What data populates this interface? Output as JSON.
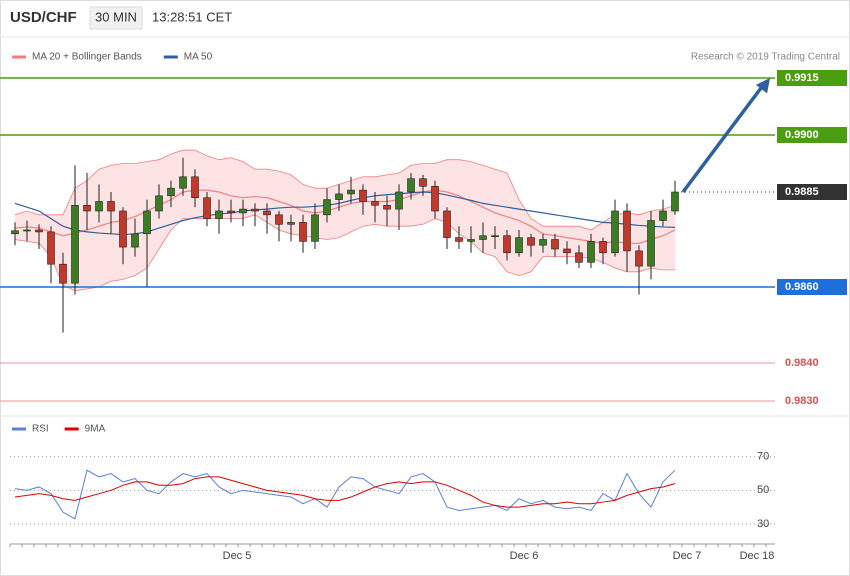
{
  "header": {
    "symbol": "USD/CHF",
    "interval": "30 MIN",
    "time": "13:28:51 CET"
  },
  "chart_data": [
    {
      "type": "candlestick",
      "copyright": "Research © 2019 Trading Central",
      "up_color": "#3a7d22",
      "down_color": "#c0392b",
      "ylim": [
        0.9825,
        0.9925
      ],
      "ohlc": [
        [
          0.9874,
          0.9877,
          0.9871,
          0.98748
        ],
        [
          0.98748,
          0.98775,
          0.9872,
          0.9875
        ],
        [
          0.9875,
          0.98765,
          0.987,
          0.98745
        ],
        [
          0.98745,
          0.9876,
          0.9861,
          0.9866
        ],
        [
          0.9866,
          0.9869,
          0.9848,
          0.9861
        ],
        [
          0.9861,
          0.9892,
          0.9858,
          0.98815
        ],
        [
          0.98815,
          0.989,
          0.9875,
          0.988
        ],
        [
          0.988,
          0.9887,
          0.9877,
          0.98825
        ],
        [
          0.98825,
          0.9885,
          0.9874,
          0.988
        ],
        [
          0.988,
          0.9881,
          0.9866,
          0.98705
        ],
        [
          0.98705,
          0.9878,
          0.9868,
          0.9874
        ],
        [
          0.9874,
          0.9883,
          0.986,
          0.988
        ],
        [
          0.988,
          0.9887,
          0.9878,
          0.9884
        ],
        [
          0.9884,
          0.9888,
          0.9881,
          0.9886
        ],
        [
          0.9886,
          0.9894,
          0.9884,
          0.9889
        ],
        [
          0.9889,
          0.9891,
          0.9881,
          0.98835
        ],
        [
          0.98835,
          0.9885,
          0.9876,
          0.9878
        ],
        [
          0.9878,
          0.9883,
          0.9874,
          0.988
        ],
        [
          0.988,
          0.9883,
          0.9877,
          0.98795
        ],
        [
          0.98795,
          0.9883,
          0.9876,
          0.98805
        ],
        [
          0.98805,
          0.9882,
          0.9876,
          0.988
        ],
        [
          0.988,
          0.9882,
          0.9874,
          0.9879
        ],
        [
          0.9879,
          0.988,
          0.9872,
          0.98765
        ],
        [
          0.98765,
          0.9879,
          0.9872,
          0.9877
        ],
        [
          0.9877,
          0.9879,
          0.9869,
          0.9872
        ],
        [
          0.9872,
          0.9882,
          0.987,
          0.9879
        ],
        [
          0.9879,
          0.9886,
          0.9877,
          0.9883
        ],
        [
          0.9883,
          0.9887,
          0.988,
          0.98845
        ],
        [
          0.98845,
          0.9889,
          0.9882,
          0.98855
        ],
        [
          0.98855,
          0.9887,
          0.9879,
          0.98825
        ],
        [
          0.98825,
          0.9885,
          0.9877,
          0.98815
        ],
        [
          0.98815,
          0.9884,
          0.9876,
          0.98805
        ],
        [
          0.98805,
          0.9887,
          0.9875,
          0.9885
        ],
        [
          0.9885,
          0.989,
          0.9883,
          0.98885
        ],
        [
          0.98885,
          0.98895,
          0.9884,
          0.98865
        ],
        [
          0.98865,
          0.9888,
          0.9878,
          0.988
        ],
        [
          0.988,
          0.9881,
          0.987,
          0.9873
        ],
        [
          0.9873,
          0.9876,
          0.987,
          0.9872
        ],
        [
          0.9872,
          0.9876,
          0.9869,
          0.98725
        ],
        [
          0.98725,
          0.9877,
          0.9869,
          0.98735
        ],
        [
          0.98735,
          0.9876,
          0.987,
          0.98735
        ],
        [
          0.98735,
          0.9875,
          0.9867,
          0.9869
        ],
        [
          0.9869,
          0.9875,
          0.9868,
          0.9873
        ],
        [
          0.9873,
          0.9874,
          0.9868,
          0.9871
        ],
        [
          0.9871,
          0.9874,
          0.9869,
          0.98725
        ],
        [
          0.98725,
          0.9874,
          0.9868,
          0.987
        ],
        [
          0.987,
          0.9872,
          0.9866,
          0.9869
        ],
        [
          0.9869,
          0.9871,
          0.9865,
          0.98665
        ],
        [
          0.98665,
          0.9874,
          0.9865,
          0.9872
        ],
        [
          0.9872,
          0.9873,
          0.9866,
          0.9869
        ],
        [
          0.9869,
          0.9883,
          0.9868,
          0.988
        ],
        [
          0.988,
          0.9882,
          0.9864,
          0.98695
        ],
        [
          0.98695,
          0.9871,
          0.9858,
          0.98655
        ],
        [
          0.98655,
          0.988,
          0.9862,
          0.98775
        ],
        [
          0.98775,
          0.9883,
          0.9876,
          0.988
        ],
        [
          0.988,
          0.9888,
          0.9879,
          0.9885
        ]
      ],
      "series": [
        {
          "name": "MA 20 + Bollinger Bands",
          "color": "#f08080",
          "band_color": "#fde3e3",
          "values": [
            0.98755,
            0.98758,
            0.98755,
            0.98745,
            0.98735,
            0.98742,
            0.9875,
            0.9876,
            0.9877,
            0.98775,
            0.98785,
            0.988,
            0.98815,
            0.9883,
            0.9885,
            0.98855,
            0.98855,
            0.9885,
            0.9884,
            0.98835,
            0.98838,
            0.98835,
            0.98825,
            0.98815,
            0.988,
            0.98795,
            0.988,
            0.9881,
            0.9882,
            0.98825,
            0.98825,
            0.98825,
            0.9883,
            0.9884,
            0.9885,
            0.98855,
            0.9885,
            0.9884,
            0.98825,
            0.9881,
            0.98795,
            0.98785,
            0.98775,
            0.9876,
            0.9874,
            0.98735,
            0.9873,
            0.98725,
            0.9872,
            0.98715,
            0.9872,
            0.98715,
            0.98715,
            0.98725,
            0.98735,
            0.9875
          ],
          "upper": [
            0.9879,
            0.988,
            0.9879,
            0.9879,
            0.9879,
            0.9886,
            0.9888,
            0.9891,
            0.9892,
            0.98925,
            0.98925,
            0.9893,
            0.98935,
            0.9895,
            0.9896,
            0.9896,
            0.98945,
            0.98935,
            0.9894,
            0.9893,
            0.9891,
            0.9891,
            0.98905,
            0.98895,
            0.9887,
            0.9886,
            0.9886,
            0.9887,
            0.9888,
            0.9889,
            0.9889,
            0.98895,
            0.989,
            0.9892,
            0.98925,
            0.98925,
            0.98935,
            0.98935,
            0.9893,
            0.9892,
            0.9891,
            0.989,
            0.9883,
            0.9878,
            0.9876,
            0.9876,
            0.9876,
            0.9876,
            0.9875,
            0.9877,
            0.9879,
            0.98795,
            0.9879,
            0.988,
            0.98805,
            0.98815
          ],
          "lower": [
            0.98725,
            0.9872,
            0.98715,
            0.9868,
            0.98605,
            0.9859,
            0.98595,
            0.986,
            0.98615,
            0.9862,
            0.9863,
            0.9865,
            0.987,
            0.9875,
            0.9878,
            0.9878,
            0.9878,
            0.9878,
            0.9878,
            0.9878,
            0.9879,
            0.9877,
            0.9875,
            0.9874,
            0.98735,
            0.9873,
            0.98725,
            0.9873,
            0.98745,
            0.9876,
            0.98765,
            0.9876,
            0.9876,
            0.9876,
            0.98765,
            0.9878,
            0.9877,
            0.9874,
            0.9872,
            0.9869,
            0.9868,
            0.9864,
            0.9863,
            0.9864,
            0.9868,
            0.9868,
            0.9868,
            0.9868,
            0.98675,
            0.98665,
            0.9865,
            0.9864,
            0.9864,
            0.9865,
            0.98645,
            0.98645
          ]
        },
        {
          "name": "MA 50",
          "color": "#2e5f9e",
          "values": [
            0.9882,
            0.9881,
            0.988,
            0.9878,
            0.9876,
            0.9875,
            0.98745,
            0.98742,
            0.9874,
            0.98738,
            0.9874,
            0.98745,
            0.98755,
            0.98765,
            0.98775,
            0.98782,
            0.98788,
            0.98792,
            0.98795,
            0.988,
            0.98803,
            0.98805,
            0.98808,
            0.9881,
            0.9881,
            0.98812,
            0.98815,
            0.9882,
            0.98828,
            0.98835,
            0.9884,
            0.98843,
            0.98845,
            0.98848,
            0.9885,
            0.98848,
            0.98842,
            0.98835,
            0.98828,
            0.9882,
            0.98815,
            0.9881,
            0.98805,
            0.988,
            0.98795,
            0.9879,
            0.98785,
            0.9878,
            0.98775,
            0.9877,
            0.98768,
            0.98765,
            0.98762,
            0.9876,
            0.98758,
            0.98757
          ]
        }
      ],
      "levels": [
        {
          "value": 0.9915,
          "color": "#4a9e0f",
          "boxed": true,
          "dotted": false
        },
        {
          "value": 0.99,
          "label": "0.9900",
          "color": "#4a9e0f",
          "boxed": true,
          "dotted": false
        },
        {
          "value": 0.9885,
          "color": "#333333",
          "boxed": true,
          "dotted": true
        },
        {
          "value": 0.986,
          "label": "0.9860",
          "color": "#1e6fdc",
          "boxed": true,
          "dotted": false
        },
        {
          "value": 0.984,
          "label": "0.9840",
          "color": "#e05050",
          "boxed": false,
          "dotted": false
        },
        {
          "value": 0.983,
          "label": "0.9830",
          "color": "#e05050",
          "boxed": false,
          "dotted": false
        }
      ],
      "projection_color": "#2e5f9e"
    },
    {
      "type": "line",
      "ylim": [
        18,
        80
      ],
      "yticks": [
        30,
        50,
        70
      ],
      "x_labels": [
        "Dec 5",
        "Dec 6",
        "Dec 7",
        "Dec 18"
      ],
      "series": [
        {
          "name": "RSI",
          "color": "#5b7fde",
          "values": [
            51,
            50,
            52,
            48,
            37,
            33,
            62,
            58,
            60,
            55,
            57,
            50,
            48,
            55,
            60,
            58,
            60,
            52,
            48,
            50,
            49,
            48,
            47,
            46,
            42,
            45,
            40,
            52,
            58,
            57,
            52,
            50,
            48,
            58,
            60,
            55,
            40,
            38,
            39,
            40,
            41,
            38,
            45,
            42,
            44,
            40,
            39,
            40,
            38,
            48,
            44,
            60,
            48,
            40,
            55,
            62
          ]
        },
        {
          "name": "9MA",
          "color": "#e00000",
          "values": [
            46,
            47,
            48,
            47,
            45,
            44,
            46,
            48,
            50,
            53,
            55,
            55,
            53,
            53,
            54,
            57,
            58,
            58,
            56,
            54,
            52,
            50,
            49,
            48,
            47,
            45,
            44,
            44,
            46,
            49,
            52,
            54,
            55,
            54,
            55,
            55,
            53,
            50,
            47,
            43,
            41,
            40,
            40,
            41,
            42,
            42,
            43,
            42,
            42,
            43,
            44,
            47,
            49,
            51,
            52,
            54
          ]
        }
      ]
    }
  ]
}
